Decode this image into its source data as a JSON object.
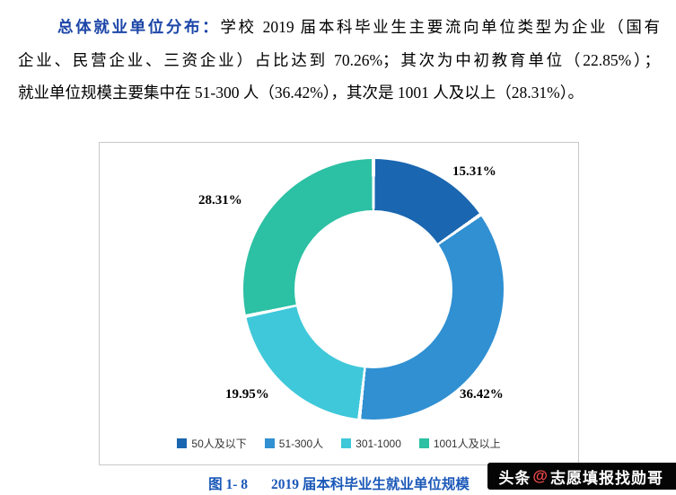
{
  "paragraph": {
    "heading": "总体就业单位分布：",
    "line1_rest": "学校 2019 届本科毕业生主要流向单位类型为企业（国有",
    "line2": "企业、民营企业、三资企业）占比达到 70.26%；其次为中初教育单位（22.85%）；",
    "line3": "就业单位规模主要集中在 51-300 人（36.42%），其次是 1001 人及以上（28.31%）。"
  },
  "chart_data": {
    "type": "pie",
    "subtype": "donut",
    "title": "",
    "categories": [
      "50人及以下",
      "51-300人",
      "301-1000",
      "1001人及以上"
    ],
    "values": [
      15.31,
      36.42,
      19.95,
      28.31
    ],
    "labels": [
      "15.31%",
      "36.42%",
      "19.95%",
      "28.31%"
    ],
    "colors": [
      "#1a66b0",
      "#3090d2",
      "#3fc8da",
      "#2cc0a4"
    ],
    "start_angle_deg": 0,
    "direction": "clockwise",
    "legend_position": "bottom"
  },
  "caption": {
    "label": "图 1- 8",
    "text": "2019 届本科毕业生就业单位规模"
  },
  "watermark": {
    "prefix": "头条",
    "at": "@",
    "name": "志愿填报找勋哥"
  },
  "colors": {
    "heading_blue": "#1c46a8",
    "caption_blue": "#1a58b8",
    "watermark_red": "#f3494b",
    "card_border": "#c9c9c9"
  }
}
